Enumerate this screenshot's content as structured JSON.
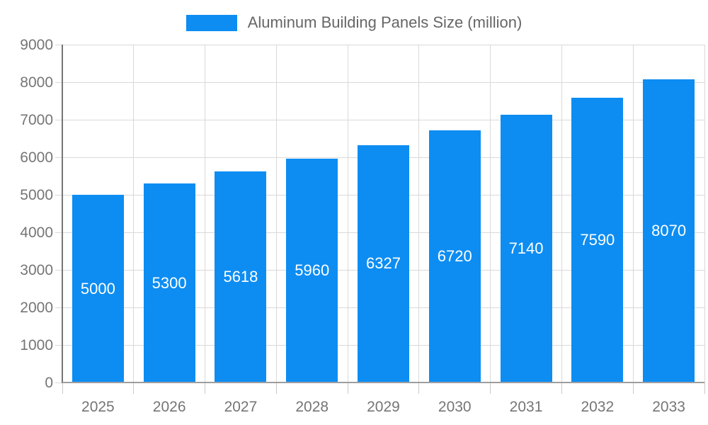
{
  "legend": {
    "label": "Aluminum Building Panels Size (million)"
  },
  "colors": {
    "bar": "#0d8df2",
    "grid": "#d9d9d9",
    "y_axis_line": "#757575",
    "x_axis_line": "#9e9e9e",
    "axis_text": "#757575",
    "legend_text": "#666666",
    "bar_label_text": "#ffffff",
    "background": "#ffffff"
  },
  "chart_data": {
    "type": "bar",
    "title": "Aluminum Building Panels Size (million)",
    "categories": [
      "2025",
      "2026",
      "2027",
      "2028",
      "2029",
      "2030",
      "2031",
      "2032",
      "2033"
    ],
    "values": [
      5000,
      5300,
      5618,
      5960,
      6327,
      6720,
      7140,
      7590,
      8070
    ],
    "series_name": "Aluminum Building Panels Size (million)",
    "xlabel": "",
    "ylabel": "",
    "ylim": [
      0,
      9000
    ],
    "ytick_interval": 1000,
    "yticks": [
      0,
      1000,
      2000,
      3000,
      4000,
      5000,
      6000,
      7000,
      8000,
      9000
    ],
    "grid": true,
    "legend_position": "top-center",
    "bar_value_labels": "inside-center-white"
  }
}
